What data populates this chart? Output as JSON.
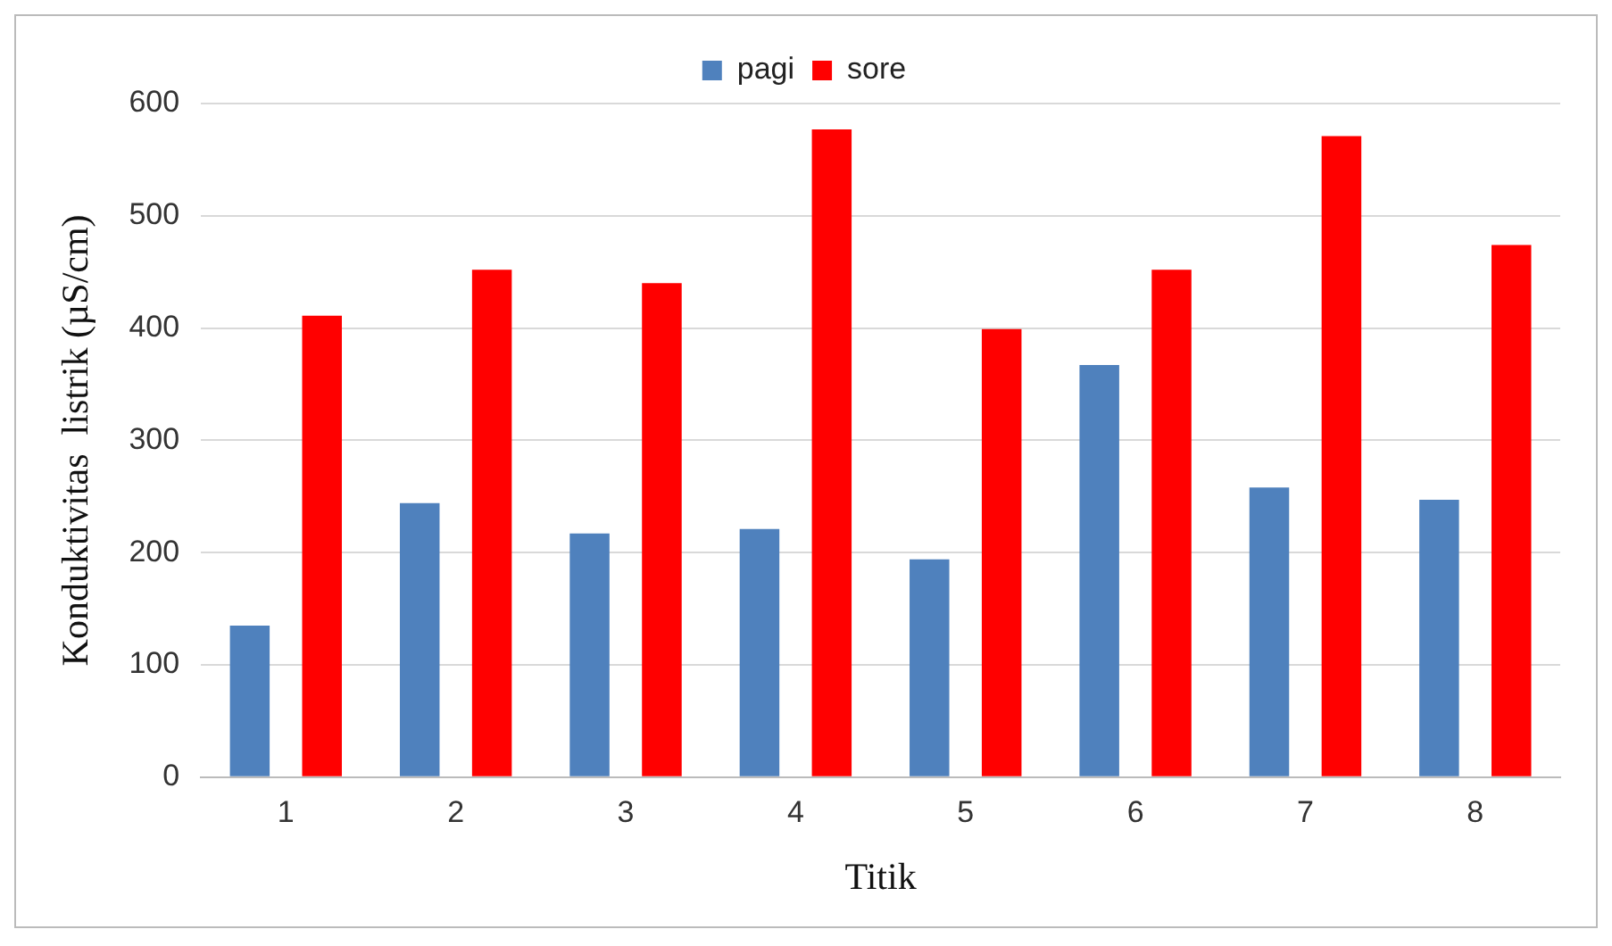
{
  "chart_data": {
    "type": "bar",
    "xlabel": "Titik",
    "ylabel": "Konduktivitas  listrik (µS/cm)",
    "categories": [
      "1",
      "2",
      "3",
      "4",
      "5",
      "6",
      "7",
      "8"
    ],
    "series": [
      {
        "name": "pagi",
        "color": "#4f81bd",
        "values": [
          135,
          244,
          217,
          221,
          194,
          367,
          258,
          247
        ]
      },
      {
        "name": "sore",
        "color": "#ff0000",
        "values": [
          411,
          452,
          440,
          577,
          399,
          452,
          571,
          474
        ]
      }
    ],
    "ylim": [
      0,
      600
    ],
    "yticks": [
      0,
      100,
      200,
      300,
      400,
      500,
      600
    ],
    "grid": "y",
    "legend": "top"
  }
}
